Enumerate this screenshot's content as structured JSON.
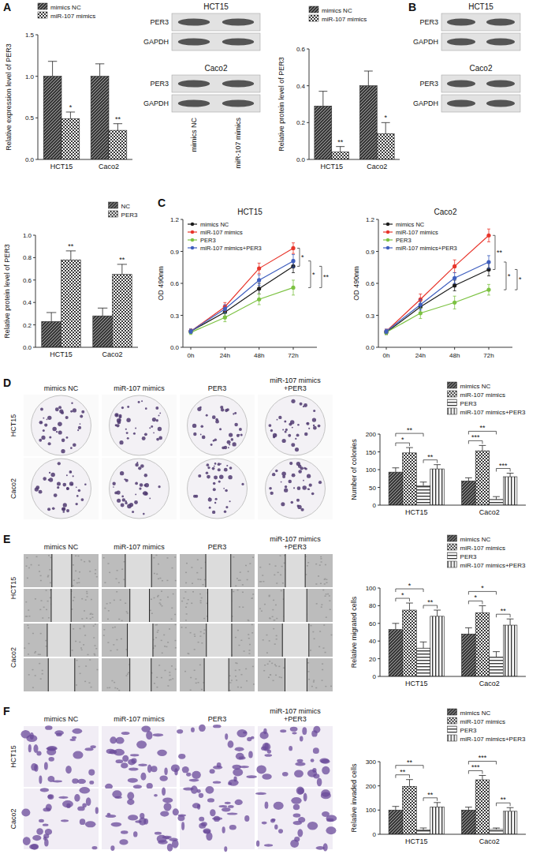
{
  "chart_data": [
    {
      "type": "bar",
      "y_label": "Relative expression level of PER3",
      "categories": [
        "HCT15",
        "Caco2"
      ],
      "series": [
        {
          "name": "mimics NC",
          "color": "#3a3a3a",
          "values": [
            1.0,
            1.0
          ],
          "errors": [
            0.18,
            0.15
          ]
        },
        {
          "name": "miR-107 mimics",
          "color": "#3a3a3a",
          "values": [
            0.49,
            0.35
          ],
          "errors": [
            0.08,
            0.08
          ]
        }
      ],
      "ylim": [
        0,
        1.5
      ],
      "yticks": [
        {
          "value": 0,
          "label": "0.0"
        },
        0.5,
        {
          "value": 1,
          "label": "1.0"
        },
        1.5
      ],
      "grid": false,
      "legend": "upper left",
      "annotations": [
        {
          "text": "*",
          "category": 0,
          "series": 1
        },
        {
          "text": "**",
          "category": 1,
          "series": 1
        }
      ]
    },
    {
      "type": "bar",
      "y_label": "Relative protein level of PER3",
      "categories": [
        "HCT15",
        "Caco2"
      ],
      "series": [
        {
          "name": "mimics NC",
          "color": "#3a3a3a",
          "values": [
            0.29,
            0.4
          ],
          "errors": [
            0.08,
            0.08
          ]
        },
        {
          "name": "miR-107 mimics",
          "color": "#3a3a3a",
          "values": [
            0.04,
            0.14
          ],
          "errors": [
            0.03,
            0.06
          ]
        }
      ],
      "ylim": [
        0,
        0.6
      ],
      "yticks": [
        {
          "value": 0,
          "label": "0.0"
        },
        0.2,
        0.4,
        0.6
      ],
      "grid": false,
      "legend": "upper left",
      "annotations": [
        {
          "text": "**",
          "category": 0,
          "series": 1
        },
        {
          "text": "*",
          "category": 1,
          "series": 1
        }
      ]
    },
    {
      "type": "bar",
      "y_label": "Relative protein level of PER3",
      "categories": [
        "HCT15",
        "Caco2"
      ],
      "series": [
        {
          "name": "NC",
          "color": "#3a3a3a",
          "values": [
            0.23,
            0.28
          ],
          "errors": [
            0.08,
            0.07
          ]
        },
        {
          "name": "PER3",
          "color": "#3a3a3a",
          "values": [
            0.78,
            0.65
          ],
          "errors": [
            0.08,
            0.09
          ]
        }
      ],
      "ylim": [
        0,
        1
      ],
      "yticks": [
        {
          "value": 0,
          "label": "0.0"
        },
        0.2,
        0.4,
        0.6,
        0.8,
        {
          "value": 1,
          "label": "1.0"
        }
      ],
      "grid": false,
      "legend": "upper right",
      "annotations": [
        {
          "text": "**",
          "category": 0,
          "series": 1
        },
        {
          "text": "**",
          "category": 1,
          "series": 1
        }
      ]
    },
    {
      "type": "line",
      "title": "HCT15",
      "y_label": "OD 490nm",
      "categories": [
        "0h",
        "24h",
        "48h",
        "72h"
      ],
      "marker": "circle",
      "series": [
        {
          "name": "mimics NC",
          "color": "#1a1a1a",
          "values": [
            0.15,
            0.33,
            0.55,
            0.76
          ],
          "errors": [
            0.02,
            0.04,
            0.05,
            0.06
          ]
        },
        {
          "name": "miR-107 mimics",
          "color": "#e8352b",
          "values": [
            0.15,
            0.38,
            0.74,
            0.93
          ],
          "errors": [
            0.02,
            0.04,
            0.05,
            0.05
          ]
        },
        {
          "name": "PER3",
          "color": "#7cc242",
          "values": [
            0.14,
            0.28,
            0.45,
            0.56
          ],
          "errors": [
            0.02,
            0.04,
            0.05,
            0.07
          ]
        },
        {
          "name": "miR-107 mimics+PER3",
          "color": "#3f5fbf",
          "values": [
            0.15,
            0.36,
            0.63,
            0.81
          ],
          "errors": [
            0.02,
            0.04,
            0.05,
            0.06
          ]
        }
      ],
      "ylim": [
        0,
        1.2
      ],
      "yticks": [
        {
          "value": 0,
          "label": "0.0"
        },
        0.3,
        0.6,
        0.9,
        1.2
      ],
      "grid": false,
      "legend": "upper left",
      "annotations": [
        {
          "text": "*",
          "series": [
            0,
            1
          ]
        },
        {
          "text": "*",
          "series": [
            2,
            3
          ]
        },
        {
          "text": "**",
          "series": [
            0,
            2
          ]
        }
      ]
    },
    {
      "type": "line",
      "title": "Caco2",
      "y_label": "OD 490nm",
      "categories": [
        "0h",
        "24h",
        "48h",
        "72h"
      ],
      "marker": "circle",
      "series": [
        {
          "name": "mimics NC",
          "color": "#1a1a1a",
          "values": [
            0.14,
            0.38,
            0.58,
            0.73
          ],
          "errors": [
            0.02,
            0.05,
            0.05,
            0.06
          ]
        },
        {
          "name": "miR-107 mimics",
          "color": "#e8352b",
          "values": [
            0.15,
            0.45,
            0.76,
            1.05
          ],
          "errors": [
            0.02,
            0.05,
            0.06,
            0.06
          ]
        },
        {
          "name": "PER3",
          "color": "#7cc242",
          "values": [
            0.14,
            0.32,
            0.42,
            0.54
          ],
          "errors": [
            0.02,
            0.05,
            0.06,
            0.05
          ]
        },
        {
          "name": "miR-107 mimics+PER3",
          "color": "#3f5fbf",
          "values": [
            0.15,
            0.4,
            0.65,
            0.8
          ],
          "errors": [
            0.02,
            0.05,
            0.05,
            0.06
          ]
        }
      ],
      "ylim": [
        0,
        1.2
      ],
      "yticks": [
        {
          "value": 0,
          "label": "0.0"
        },
        0.3,
        0.6,
        0.9,
        1.2
      ],
      "grid": false,
      "legend": "upper left",
      "annotations": [
        {
          "text": "**",
          "series": [
            0,
            1
          ]
        },
        {
          "text": "*",
          "series": [
            2,
            3
          ]
        },
        {
          "text": "*",
          "series": [
            0,
            2
          ]
        }
      ]
    },
    {
      "type": "bar",
      "y_label": "Number of colonies",
      "categories": [
        "HCT15",
        "Caco2"
      ],
      "series": [
        {
          "name": "mimics NC",
          "color": "#3a3a3a",
          "values": [
            93,
            68
          ],
          "errors": [
            12,
            9
          ]
        },
        {
          "name": "miR-107 mimics",
          "color": "#3a3a3a",
          "values": [
            147,
            153
          ],
          "errors": [
            15,
            15
          ]
        },
        {
          "name": "PER3",
          "color": "#3a3a3a",
          "values": [
            55,
            16
          ],
          "errors": [
            10,
            8
          ]
        },
        {
          "name": "miR-107 mimics+PER3",
          "color": "#3a3a3a",
          "values": [
            102,
            80
          ],
          "errors": [
            12,
            10
          ]
        }
      ],
      "ylim": [
        0,
        200
      ],
      "yticks": [
        0,
        50,
        100,
        150,
        200
      ],
      "grid": false,
      "legend": "upper right",
      "annotations": [
        {
          "text": "*",
          "category": 0,
          "series": [
            0,
            1
          ]
        },
        {
          "text": "**",
          "category": 0,
          "series": [
            2,
            3
          ]
        },
        {
          "text": "**",
          "category": 0,
          "series": [
            0,
            2
          ]
        },
        {
          "text": "***",
          "category": 1,
          "series": [
            0,
            1
          ]
        },
        {
          "text": "***",
          "category": 1,
          "series": [
            2,
            3
          ]
        },
        {
          "text": "**",
          "category": 1,
          "series": [
            0,
            2
          ]
        }
      ]
    },
    {
      "type": "bar",
      "y_label": "Relative migrated cells",
      "categories": [
        "HCT15",
        "Caco2"
      ],
      "series": [
        {
          "name": "mimics NC",
          "color": "#3a3a3a",
          "values": [
            53,
            48
          ],
          "errors": [
            7,
            7
          ]
        },
        {
          "name": "miR-107 mimics",
          "color": "#3a3a3a",
          "values": [
            75,
            72
          ],
          "errors": [
            8,
            8
          ]
        },
        {
          "name": "PER3",
          "color": "#3a3a3a",
          "values": [
            32,
            22
          ],
          "errors": [
            7,
            6
          ]
        },
        {
          "name": "miR-107 mimics+PER3",
          "color": "#3a3a3a",
          "values": [
            68,
            58
          ],
          "errors": [
            7,
            7
          ]
        }
      ],
      "ylim": [
        0,
        100
      ],
      "yticks": [
        0,
        20,
        40,
        60,
        80,
        100
      ],
      "grid": false,
      "legend": "upper right",
      "annotations": [
        {
          "text": "*",
          "category": 0,
          "series": [
            0,
            1
          ]
        },
        {
          "text": "**",
          "category": 0,
          "series": [
            2,
            3
          ]
        },
        {
          "text": "*",
          "category": 0,
          "series": [
            0,
            2
          ]
        },
        {
          "text": "*",
          "category": 1,
          "series": [
            0,
            1
          ]
        },
        {
          "text": "**",
          "category": 1,
          "series": [
            2,
            3
          ]
        },
        {
          "text": "*",
          "category": 1,
          "series": [
            0,
            2
          ]
        }
      ]
    },
    {
      "type": "bar",
      "y_label": "Relative invaded cells",
      "categories": [
        "HCT15",
        "Caco2"
      ],
      "series": [
        {
          "name": "mimics NC",
          "color": "#3a3a3a",
          "values": [
            100,
            100
          ],
          "errors": [
            15,
            12
          ]
        },
        {
          "name": "miR-107 mimics",
          "color": "#3a3a3a",
          "values": [
            198,
            225
          ],
          "errors": [
            28,
            18
          ]
        },
        {
          "name": "PER3",
          "color": "#3a3a3a",
          "values": [
            18,
            20
          ],
          "errors": [
            8,
            6
          ]
        },
        {
          "name": "miR-107 mimics+PER3",
          "color": "#3a3a3a",
          "values": [
            113,
            95
          ],
          "errors": [
            18,
            15
          ]
        }
      ],
      "ylim": [
        0,
        300
      ],
      "yticks": [
        0,
        100,
        200,
        300
      ],
      "grid": false,
      "legend": "upper right",
      "annotations": [
        {
          "text": "**",
          "category": 0,
          "series": [
            0,
            1
          ]
        },
        {
          "text": "**",
          "category": 0,
          "series": [
            2,
            3
          ]
        },
        {
          "text": "**",
          "category": 0,
          "series": [
            0,
            2
          ]
        },
        {
          "text": "***",
          "category": 1,
          "series": [
            0,
            1
          ]
        },
        {
          "text": "**",
          "category": 1,
          "series": [
            2,
            3
          ]
        },
        {
          "text": "***",
          "category": 1,
          "series": [
            0,
            2
          ]
        }
      ]
    }
  ],
  "figure": {
    "panel_labels": [
      "A",
      "B",
      "C",
      "D",
      "E",
      "F"
    ],
    "blots": [
      {
        "cell_lines": [
          {
            "name": "HCT15",
            "bands": [
              "PER3",
              "GAPDH"
            ]
          },
          {
            "name": "Caco2",
            "bands": [
              "PER3",
              "GAPDH"
            ]
          }
        ],
        "lanes": [
          "mimics NC",
          "miR-107 mimics"
        ]
      },
      {
        "cell_lines": [
          {
            "name": "HCT15",
            "bands": [
              "PER3",
              "GAPDH"
            ]
          },
          {
            "name": "Caco2",
            "bands": [
              "PER3",
              "GAPDH"
            ]
          }
        ]
      }
    ],
    "photo_panels": [
      {
        "kind": "colony",
        "columns": [
          [
            "mimics NC"
          ],
          [
            "miR-107 mimics"
          ],
          [
            "PER3"
          ],
          [
            "miR-107 mimics",
            "+PER3"
          ]
        ],
        "rows": [
          "HCT15",
          "Caco2"
        ]
      },
      {
        "kind": "wound",
        "columns": [
          [
            "mimics NC"
          ],
          [
            "miR-107 mimics"
          ],
          [
            "PER3"
          ],
          [
            "miR-107 mimics",
            "+PER3"
          ]
        ],
        "rows": [
          "HCT15",
          "Caco2"
        ]
      },
      {
        "kind": "transwell",
        "columns": [
          [
            "mimics NC"
          ],
          [
            "miR-107 mimics"
          ],
          [
            "PER3"
          ],
          [
            "miR-107 mimics",
            "+PER3"
          ]
        ],
        "rows": [
          "HCT15",
          "Caco2"
        ]
      }
    ]
  }
}
